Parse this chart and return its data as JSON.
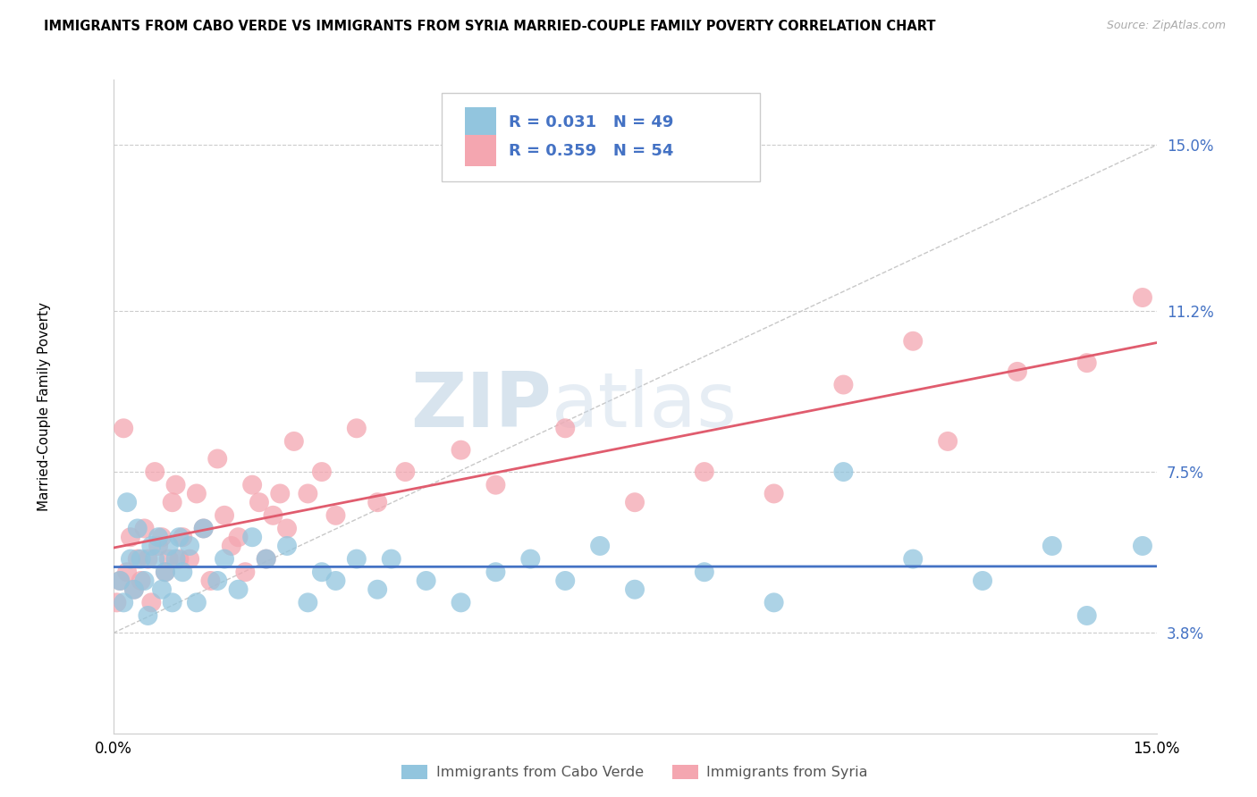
{
  "title": "IMMIGRANTS FROM CABO VERDE VS IMMIGRANTS FROM SYRIA MARRIED-COUPLE FAMILY POVERTY CORRELATION CHART",
  "source": "Source: ZipAtlas.com",
  "ylabel": "Married-Couple Family Poverty",
  "ytick_labels": [
    "3.8%",
    "7.5%",
    "11.2%",
    "15.0%"
  ],
  "ytick_values": [
    3.8,
    7.5,
    11.2,
    15.0
  ],
  "xmin": 0.0,
  "xmax": 15.0,
  "ymin": 1.5,
  "ymax": 16.5,
  "R_cabo": 0.031,
  "N_cabo": 49,
  "R_syria": 0.359,
  "N_syria": 54,
  "cabo_color": "#92C5DE",
  "syria_color": "#F4A6B0",
  "cabo_line_color": "#4472C4",
  "syria_line_color": "#E05C6E",
  "legend_cabo_label": "Immigrants from Cabo Verde",
  "legend_syria_label": "Immigrants from Syria",
  "cabo_verde_x": [
    0.1,
    0.15,
    0.2,
    0.25,
    0.3,
    0.35,
    0.4,
    0.45,
    0.5,
    0.55,
    0.6,
    0.65,
    0.7,
    0.75,
    0.8,
    0.85,
    0.9,
    0.95,
    1.0,
    1.1,
    1.2,
    1.3,
    1.5,
    1.6,
    1.8,
    2.0,
    2.2,
    2.5,
    2.8,
    3.0,
    3.2,
    3.5,
    3.8,
    4.0,
    4.5,
    5.0,
    5.5,
    6.0,
    6.5,
    7.0,
    7.5,
    8.5,
    9.5,
    10.5,
    11.5,
    12.5,
    13.5,
    14.0,
    14.8
  ],
  "cabo_verde_y": [
    5.0,
    4.5,
    6.8,
    5.5,
    4.8,
    6.2,
    5.5,
    5.0,
    4.2,
    5.8,
    5.5,
    6.0,
    4.8,
    5.2,
    5.8,
    4.5,
    5.5,
    6.0,
    5.2,
    5.8,
    4.5,
    6.2,
    5.0,
    5.5,
    4.8,
    6.0,
    5.5,
    5.8,
    4.5,
    5.2,
    5.0,
    5.5,
    4.8,
    5.5,
    5.0,
    4.5,
    5.2,
    5.5,
    5.0,
    5.8,
    4.8,
    5.2,
    4.5,
    7.5,
    5.5,
    5.0,
    5.8,
    4.2,
    5.8
  ],
  "syria_x": [
    0.05,
    0.1,
    0.15,
    0.2,
    0.25,
    0.3,
    0.35,
    0.4,
    0.45,
    0.5,
    0.55,
    0.6,
    0.65,
    0.7,
    0.75,
    0.8,
    0.85,
    0.9,
    0.95,
    1.0,
    1.1,
    1.2,
    1.3,
    1.4,
    1.5,
    1.6,
    1.7,
    1.8,
    1.9,
    2.0,
    2.1,
    2.2,
    2.3,
    2.4,
    2.5,
    2.6,
    2.8,
    3.0,
    3.2,
    3.5,
    3.8,
    4.2,
    5.0,
    5.5,
    6.5,
    7.5,
    8.5,
    9.5,
    10.5,
    11.5,
    12.0,
    13.0,
    14.0,
    14.8
  ],
  "syria_y": [
    4.5,
    5.0,
    8.5,
    5.2,
    6.0,
    4.8,
    5.5,
    5.0,
    6.2,
    5.5,
    4.5,
    7.5,
    5.8,
    6.0,
    5.2,
    5.5,
    6.8,
    7.2,
    5.5,
    6.0,
    5.5,
    7.0,
    6.2,
    5.0,
    7.8,
    6.5,
    5.8,
    6.0,
    5.2,
    7.2,
    6.8,
    5.5,
    6.5,
    7.0,
    6.2,
    8.2,
    7.0,
    7.5,
    6.5,
    8.5,
    6.8,
    7.5,
    8.0,
    7.2,
    8.5,
    6.8,
    7.5,
    7.0,
    9.5,
    10.5,
    8.2,
    9.8,
    10.0,
    11.5
  ]
}
